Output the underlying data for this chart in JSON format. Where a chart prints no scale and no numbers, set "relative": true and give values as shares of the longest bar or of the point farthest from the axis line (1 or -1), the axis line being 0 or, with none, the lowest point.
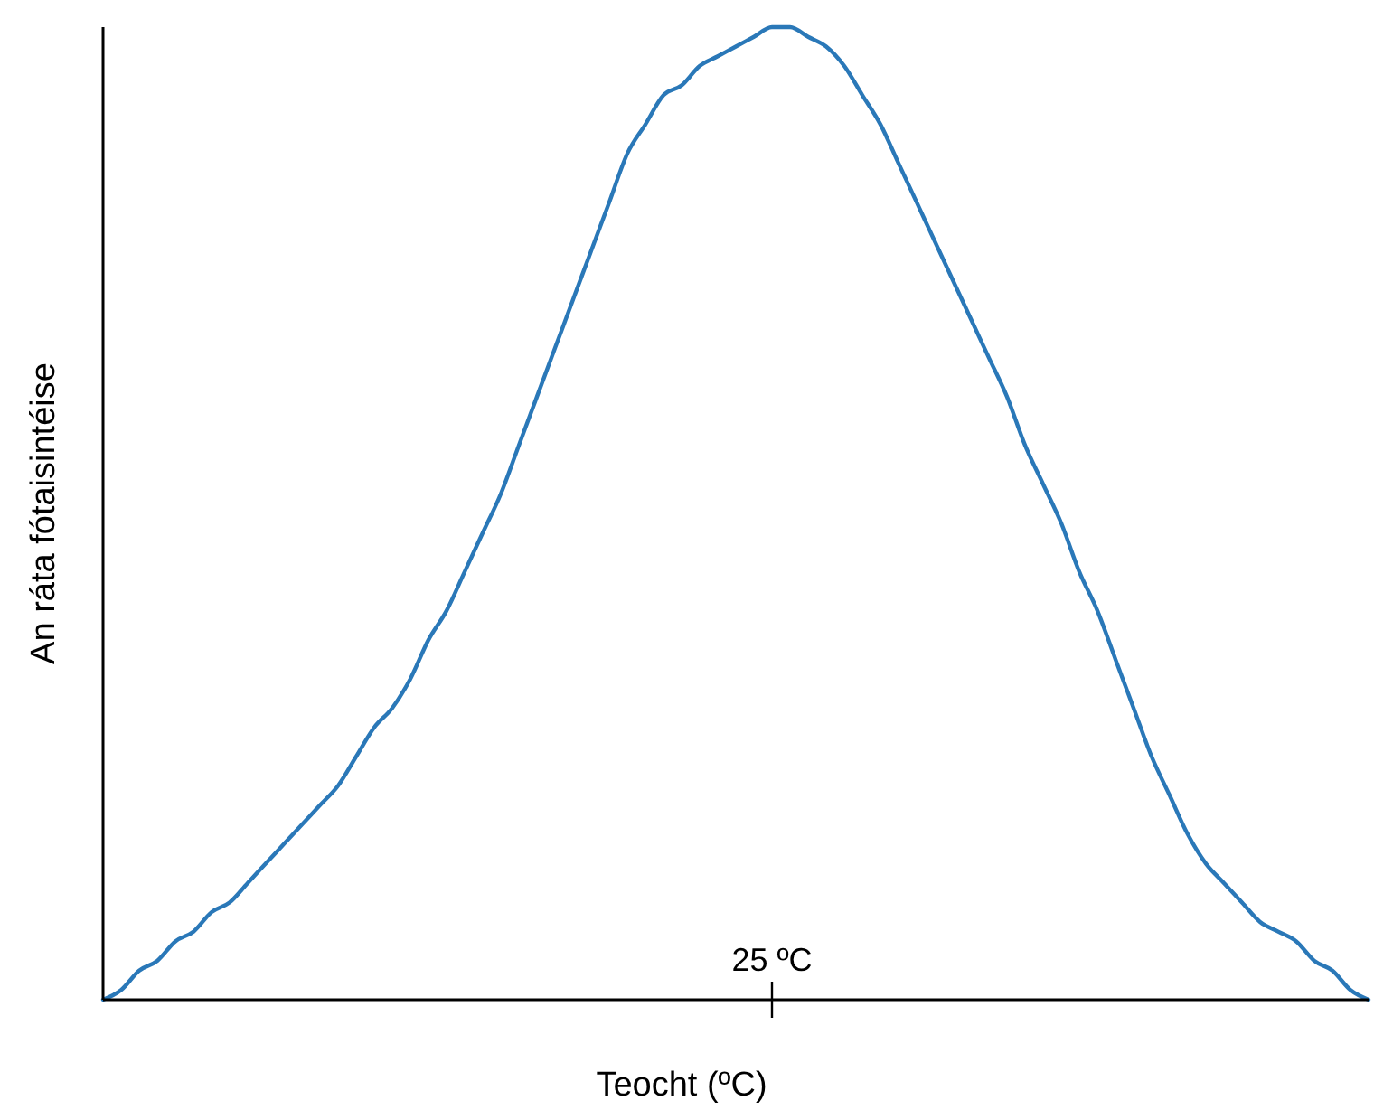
{
  "chart_data": {
    "type": "line",
    "relative": true,
    "xlabel": "Teocht (ºC)",
    "ylabel": "An ráta fótaisintéise",
    "color": "#2a78b8",
    "annotations": [
      "25 ºC"
    ],
    "categories": [
      null,
      null,
      null,
      null,
      null,
      null,
      null,
      null,
      null,
      null,
      null,
      null,
      null,
      null,
      null,
      null,
      null,
      null,
      null,
      null,
      null,
      null,
      null,
      null,
      null,
      null,
      null,
      null,
      null,
      null,
      null,
      null,
      null,
      null,
      null,
      null,
      null,
      null,
      null,
      null,
      null,
      null,
      null,
      null,
      null,
      null,
      null,
      null,
      null,
      null,
      null,
      null,
      null,
      null,
      null,
      null,
      null,
      null,
      null,
      null,
      null,
      null,
      null,
      null,
      null,
      null,
      null,
      null,
      null,
      null,
      null
    ],
    "values": [
      0,
      0.01,
      0.03,
      0.04,
      0.06,
      0.07,
      0.09,
      0.1,
      0.12,
      0.14,
      0.16,
      0.18,
      0.2,
      0.22,
      0.25,
      0.28,
      0.3,
      0.33,
      0.37,
      0.4,
      0.44,
      0.48,
      0.52,
      0.57,
      0.62,
      0.67,
      0.72,
      0.77,
      0.82,
      0.87,
      0.9,
      0.93,
      0.94,
      0.96,
      0.97,
      0.98,
      0.99,
      1,
      1,
      0.99,
      0.98,
      0.96,
      0.93,
      0.9,
      0.86,
      0.82,
      0.78,
      0.74,
      0.7,
      0.66,
      0.62,
      0.57,
      0.53,
      0.49,
      0.44,
      0.4,
      0.35,
      0.3,
      0.25,
      0.21,
      0.17,
      0.14,
      0.12,
      0.1,
      0.08,
      0.07,
      0.06,
      0.04,
      0.03,
      0.01,
      0
    ]
  }
}
